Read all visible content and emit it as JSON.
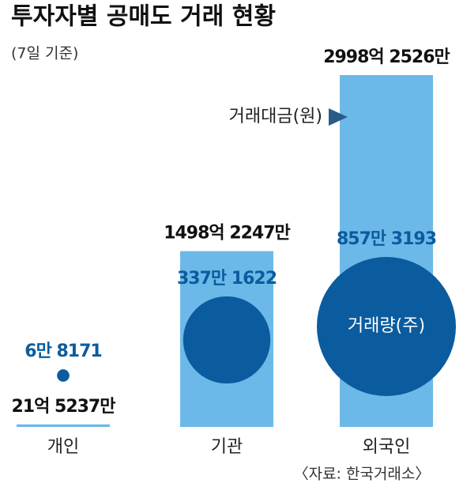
{
  "chart_data": {
    "type": "bar-bubble",
    "title": "투자자별 공매도 거래 현황",
    "subtitle": "(7일 기준)",
    "source": "〈자료: 한국거래소〉",
    "categories": [
      "개인",
      "기관",
      "외국인"
    ],
    "series": [
      {
        "name": "거래대금(원)",
        "color": "#6cb9e9",
        "values": [
          2152370000,
          149822470000,
          299825260000
        ],
        "value_labels": [
          "21억 5237만",
          "1498억 2247만",
          "2998억 2526만"
        ]
      },
      {
        "name": "거래량(주)",
        "color": "#0b5c9e",
        "values": [
          68171,
          3371622,
          8573193
        ],
        "value_labels": [
          "6만 8171",
          "337만 1622",
          "857만 3193"
        ]
      }
    ]
  }
}
